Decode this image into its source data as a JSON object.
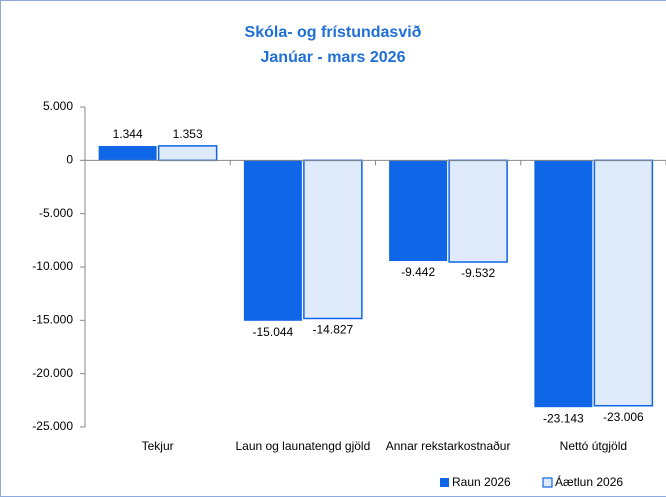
{
  "chart_data": {
    "type": "bar",
    "title": "Skóla- og frístundasvið",
    "subtitle": "Janúar - mars 2026",
    "categories": [
      "Tekjur",
      "Laun og launatengd gjöld",
      "Annar rekstarkostnaður",
      "Nettó útgjöld"
    ],
    "series": [
      {
        "name": "Raun 2026",
        "color": "#0f66e6",
        "values": [
          1344,
          -15044,
          -9442,
          -23143
        ],
        "value_labels": [
          "1.344",
          "-15.044",
          "-9.442",
          "-23.143"
        ]
      },
      {
        "name": "Áætlun 2026",
        "color": "#dfeafb",
        "values": [
          1353,
          -14827,
          -9532,
          -23006
        ],
        "value_labels": [
          "1.353",
          "-14.827",
          "-9.532",
          "-23.006"
        ]
      }
    ],
    "ylim": [
      -25000,
      5000
    ],
    "yticks": [
      {
        "value": 5000,
        "label": "5.000"
      },
      0,
      {
        "value": -5000,
        "label": "-5.000"
      },
      {
        "value": -10000,
        "label": "-10.000"
      },
      {
        "value": -15000,
        "label": "-15.000"
      },
      {
        "value": -20000,
        "label": "-20.000"
      },
      {
        "value": -25000,
        "label": "-25.000"
      }
    ],
    "legend": "bottom-right"
  }
}
